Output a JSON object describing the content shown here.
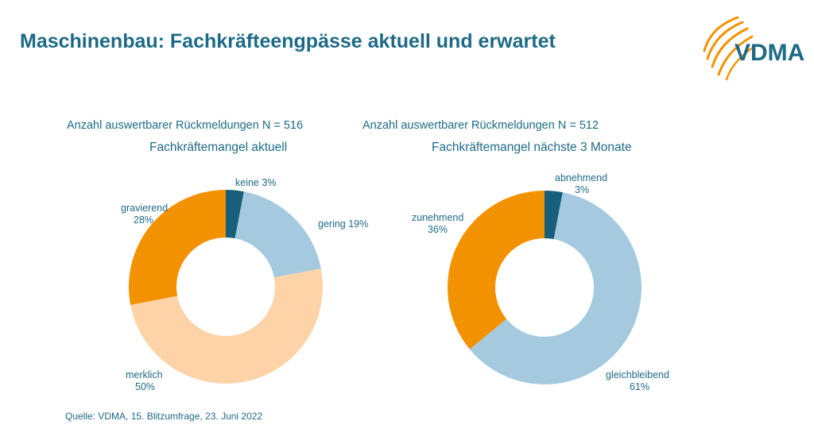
{
  "header": {
    "title": "Maschinenbau: Fachkräfteengpässe aktuell und erwartet"
  },
  "logo": {
    "text": "VDMA",
    "icon": "vdma-arc-logo-icon",
    "colors": {
      "arcs": "#f39200",
      "text": "#1d6a86"
    }
  },
  "colors": {
    "text": "#1d6a86",
    "dark_teal": "#175f7a",
    "light_blue": "#a5cae0",
    "peach": "#fdd3a7",
    "orange": "#f39200"
  },
  "chart_data": [
    {
      "type": "pie",
      "style": "donut",
      "meta": "Anzahl auswertbarer Rückmeldungen N = 516",
      "title": "Fachkräftemangel aktuell",
      "slices": [
        {
          "name": "keine",
          "value": 3,
          "label": "3%",
          "color": "#175f7a"
        },
        {
          "name": "gering",
          "value": 19,
          "label": "19%",
          "color": "#a5cae0"
        },
        {
          "name": "merklich",
          "value": 50,
          "label": "50%",
          "color": "#fdd3a7"
        },
        {
          "name": "gravierend",
          "value": 28,
          "label": "28%",
          "color": "#f39200"
        }
      ]
    },
    {
      "type": "pie",
      "style": "donut",
      "meta": "Anzahl auswertbarer Rückmeldungen N = 512",
      "title": "Fachkräftemangel nächste 3 Monate",
      "slices": [
        {
          "name": "abnehmend",
          "value": 3,
          "label": "3%",
          "color": "#175f7a"
        },
        {
          "name": "gleichbleibend",
          "value": 61,
          "label": "61%",
          "color": "#a5cae0"
        },
        {
          "name": "zunehmend",
          "value": 36,
          "label": "36%",
          "color": "#f39200"
        }
      ]
    }
  ],
  "footer": {
    "source": "Quelle: VDMA, 15. Blitzumfrage, 23. Juni 2022"
  }
}
